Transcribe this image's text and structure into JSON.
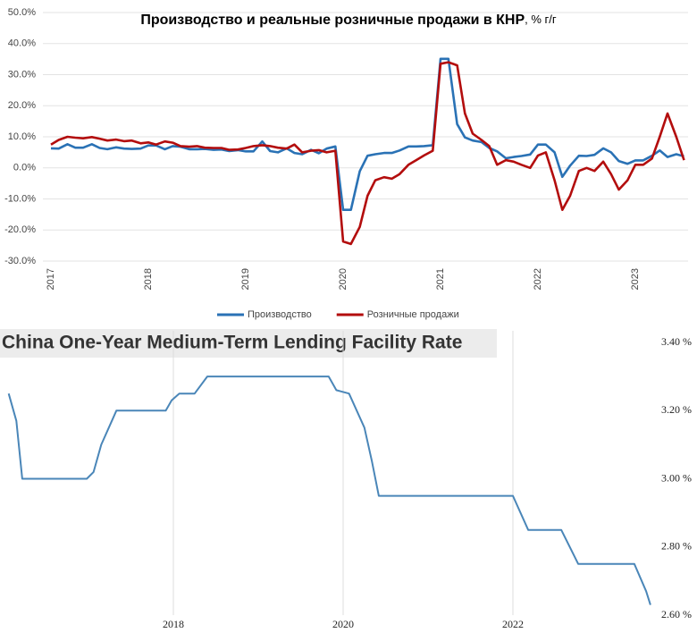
{
  "chart_data": [
    {
      "type": "line",
      "title": "Производство и реальные розничные продажи в КНР",
      "subtitle": ", % г/г",
      "xlim": [
        2017,
        2023.55
      ],
      "xticks": [
        2017,
        2018,
        2019,
        2020,
        2021,
        2022,
        2023
      ],
      "ylim": [
        -30,
        50
      ],
      "yticks": [
        {
          "value": -30,
          "label": "-30.0%"
        },
        {
          "value": -20,
          "label": "-20.0%"
        },
        {
          "value": -10,
          "label": "-10.0%"
        },
        {
          "value": 0,
          "label": "0.0%"
        },
        {
          "value": 10,
          "label": "10.0%"
        },
        {
          "value": 20,
          "label": "20.0%"
        },
        {
          "value": 30,
          "label": "30.0%"
        },
        {
          "value": 40,
          "label": "40.0%"
        },
        {
          "value": 50,
          "label": "50.0%"
        }
      ],
      "grid": true,
      "legend": "bottom",
      "x": [
        2017.0,
        2017.08,
        2017.17,
        2017.25,
        2017.33,
        2017.42,
        2017.5,
        2017.58,
        2017.67,
        2017.75,
        2017.83,
        2017.92,
        2018.0,
        2018.08,
        2018.17,
        2018.25,
        2018.33,
        2018.42,
        2018.5,
        2018.58,
        2018.67,
        2018.75,
        2018.83,
        2018.92,
        2019.0,
        2019.08,
        2019.17,
        2019.25,
        2019.33,
        2019.42,
        2019.5,
        2019.58,
        2019.67,
        2019.75,
        2019.83,
        2019.92,
        2020.0,
        2020.08,
        2020.17,
        2020.25,
        2020.33,
        2020.42,
        2020.5,
        2020.58,
        2020.67,
        2020.75,
        2020.83,
        2020.92,
        2021.0,
        2021.08,
        2021.17,
        2021.25,
        2021.33,
        2021.42,
        2021.5,
        2021.58,
        2021.67,
        2021.75,
        2021.83,
        2021.92,
        2022.0,
        2022.08,
        2022.17,
        2022.25,
        2022.33,
        2022.42,
        2022.5,
        2022.58,
        2022.67,
        2022.75,
        2022.83,
        2022.92,
        2023.0,
        2023.08,
        2023.17,
        2023.25,
        2023.33,
        2023.42,
        2023.5
      ],
      "series": [
        {
          "name": "Производство",
          "color": "#2a72b5",
          "values": [
            6.3,
            6.2,
            7.6,
            6.5,
            6.5,
            7.6,
            6.4,
            6.0,
            6.6,
            6.2,
            6.1,
            6.2,
            7.2,
            7.2,
            6.0,
            7.0,
            6.8,
            6.0,
            6.0,
            6.1,
            5.8,
            5.9,
            5.4,
            5.7,
            5.3,
            5.3,
            8.5,
            5.4,
            5.0,
            6.3,
            4.8,
            4.4,
            5.8,
            4.7,
            6.2,
            6.9,
            -13.5,
            -13.5,
            -1.1,
            3.9,
            4.4,
            4.8,
            4.8,
            5.6,
            6.9,
            6.9,
            7.0,
            7.3,
            35.1,
            35.1,
            14.1,
            9.8,
            8.8,
            8.3,
            6.4,
            5.3,
            3.1,
            3.5,
            3.8,
            4.3,
            7.5,
            7.5,
            5.0,
            -2.9,
            0.7,
            3.9,
            3.8,
            4.2,
            6.3,
            5.0,
            2.2,
            1.3,
            2.4,
            2.4,
            3.9,
            5.6,
            3.5,
            4.4,
            3.7
          ]
        },
        {
          "name": "Розничные продажи",
          "color": "#b30d0d",
          "values": [
            7.5,
            9.0,
            10.0,
            9.7,
            9.5,
            9.9,
            9.4,
            8.8,
            9.1,
            8.6,
            8.8,
            7.9,
            8.2,
            7.5,
            8.5,
            8.1,
            7.0,
            6.8,
            7.0,
            6.5,
            6.4,
            6.4,
            5.8,
            5.9,
            6.4,
            7.0,
            7.3,
            7.0,
            6.5,
            6.2,
            7.5,
            5.0,
            5.5,
            5.7,
            5.0,
            5.5,
            -23.7,
            -24.5,
            -19,
            -9,
            -4,
            -3,
            -3.5,
            -2,
            1,
            2.5,
            4,
            5.5,
            33.5,
            34,
            33,
            17.5,
            11,
            9,
            7,
            1,
            2.5,
            2,
            1,
            0,
            4,
            5,
            -4,
            -13.5,
            -9,
            -1,
            0,
            -1,
            2,
            -2,
            -7,
            -4,
            1,
            1,
            3,
            10,
            17.5,
            10,
            2.5
          ]
        }
      ]
    },
    {
      "type": "line",
      "title": "China One-Year Medium-Term Lending Facility Rate",
      "xlim": [
        2016,
        2024
      ],
      "xticks": [
        2018,
        2020,
        2022
      ],
      "ylim": [
        2.6,
        3.4
      ],
      "yticks": [
        {
          "value": 2.6,
          "label": "2.60 %"
        },
        {
          "value": 2.8,
          "label": "2.80 %"
        },
        {
          "value": 3.0,
          "label": "3.00 %"
        },
        {
          "value": 3.2,
          "label": "3.20 %"
        },
        {
          "value": 3.4,
          "label": "3.40 %"
        }
      ],
      "grid": true,
      "x": [
        2016.06,
        2016.15,
        2016.22,
        2016.98,
        2017.06,
        2017.15,
        2017.33,
        2017.91,
        2017.98,
        2018.07,
        2018.25,
        2018.4,
        2019.83,
        2019.92,
        2020.07,
        2020.25,
        2020.34,
        2020.42,
        2022.0,
        2022.18,
        2022.57,
        2022.77,
        2023.43,
        2023.57,
        2023.62
      ],
      "series": [
        {
          "color": "#4a86b8",
          "values": [
            3.25,
            3.17,
            3.0,
            3.0,
            3.02,
            3.1,
            3.2,
            3.2,
            3.23,
            3.25,
            3.25,
            3.3,
            3.3,
            3.26,
            3.25,
            3.15,
            3.05,
            2.95,
            2.95,
            2.85,
            2.85,
            2.75,
            2.75,
            2.67,
            2.63
          ]
        }
      ]
    }
  ]
}
